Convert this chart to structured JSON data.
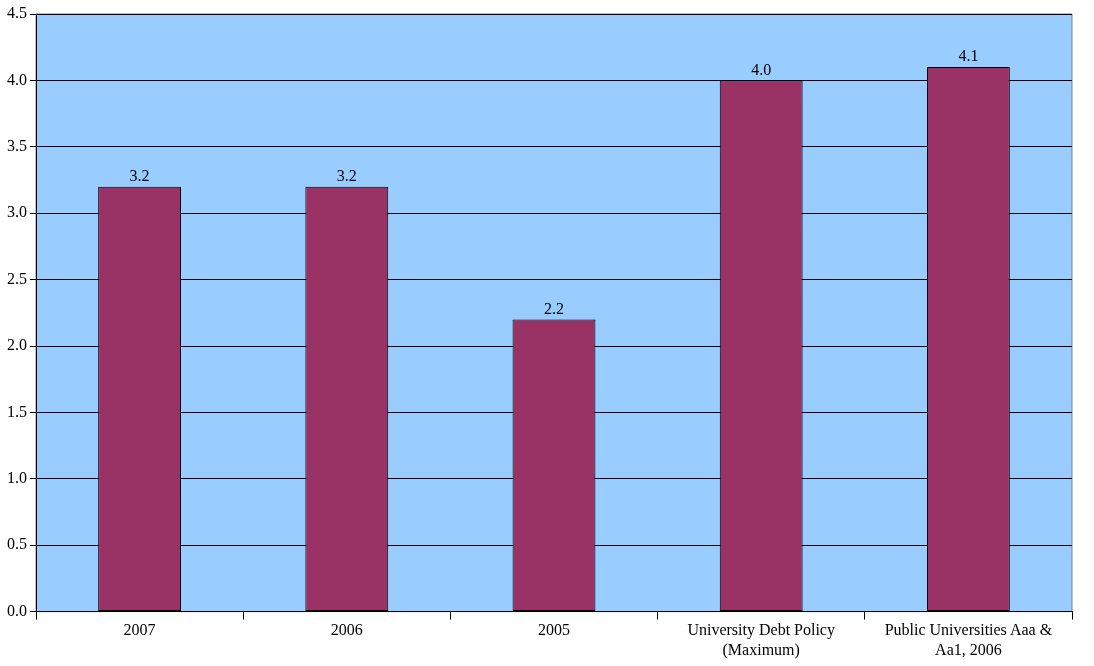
{
  "chart_data": {
    "type": "bar",
    "categories": [
      "2007",
      "2006",
      "2005",
      "University Debt Policy (Maximum)",
      "Public Universities Aaa & Aa1, 2006"
    ],
    "values": [
      3.2,
      3.2,
      2.2,
      4.0,
      4.1
    ],
    "value_labels": [
      "3.2",
      "3.2",
      "2.2",
      "4.0",
      "4.1"
    ],
    "color": "#993366",
    "ylim": [
      0,
      4.5
    ],
    "yticks": [
      {
        "value": 0,
        "label": "0.0"
      },
      {
        "value": 0.5,
        "label": "0.5"
      },
      {
        "value": 1,
        "label": "1.0"
      },
      {
        "value": 1.5,
        "label": "1.5"
      },
      {
        "value": 2,
        "label": "2.0"
      },
      {
        "value": 2.5,
        "label": "2.5"
      },
      {
        "value": 3,
        "label": "3.0"
      },
      {
        "value": 3.5,
        "label": "3.5"
      },
      {
        "value": 4,
        "label": "4.0"
      },
      {
        "value": 4.5,
        "label": "4.5"
      }
    ],
    "grid": "y",
    "legend": false
  }
}
